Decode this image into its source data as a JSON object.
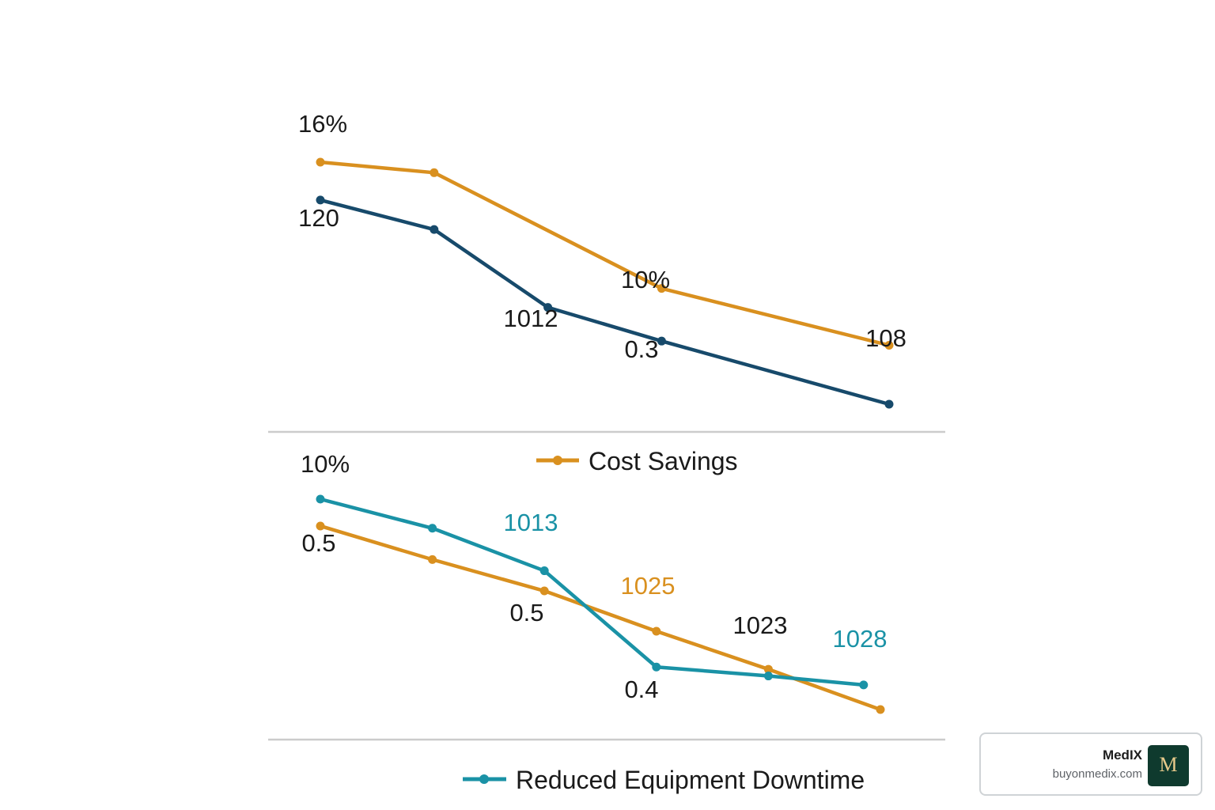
{
  "colors": {
    "orange": "#d9901f",
    "navy": "#174a6b",
    "teal": "#1a92a6",
    "axis": "#cccccc",
    "label_dark": "#1a1a1a"
  },
  "chart_data": [
    {
      "type": "line",
      "legend": {
        "label": "Cost Savings",
        "color": "#d9901f",
        "marker": "circle",
        "placement": "bottom-center"
      },
      "x": [
        1,
        2,
        3,
        4,
        5,
        6
      ],
      "series": [
        {
          "color": "#d9901f",
          "y": [
            16,
            15.5,
            null,
            10,
            null,
            7.3
          ],
          "x": [
            1,
            2,
            null,
            4,
            null,
            6
          ]
        },
        {
          "color": "#174a6b",
          "y": [
            14.2,
            12.8,
            9.1,
            7.5,
            null,
            4.5
          ],
          "x": [
            1,
            2,
            3,
            4,
            null,
            6
          ]
        }
      ],
      "annotations": [
        {
          "text": "16%",
          "color": "#1a1a1a"
        },
        {
          "text": "120",
          "color": "#1a1a1a"
        },
        {
          "text": "1012",
          "color": "#1a1a1a"
        },
        {
          "text": "10%",
          "color": "#1a1a1a"
        },
        {
          "text": "0.3",
          "color": "#1a1a1a"
        },
        {
          "text": "108",
          "color": "#1a1a1a"
        }
      ]
    },
    {
      "type": "line",
      "legend": {
        "label": "Reduced Equipment Downtime",
        "color": "#1a92a6",
        "marker": "circle",
        "placement": "bottom-center"
      },
      "x": [
        1,
        2,
        3,
        4,
        5,
        6
      ],
      "series": [
        {
          "color": "#d9901f",
          "x": [
            1,
            2,
            3,
            4,
            5,
            6
          ],
          "y": [
            10.6,
            9.1,
            7.7,
            5.9,
            4.2,
            2.4
          ]
        },
        {
          "color": "#1a92a6",
          "x": [
            1,
            2,
            3,
            4,
            5,
            5.85
          ],
          "y": [
            11.8,
            10.5,
            8.6,
            4.3,
            3.9,
            3.5
          ]
        }
      ],
      "annotations": [
        {
          "text": "10%",
          "color": "#1a1a1a"
        },
        {
          "text": "0.5",
          "color": "#1a1a1a"
        },
        {
          "text": "1013",
          "color": "#1a92a6"
        },
        {
          "text": "0.5",
          "color": "#1a1a1a"
        },
        {
          "text": "1025",
          "color": "#d9901f"
        },
        {
          "text": "0.4",
          "color": "#1a1a1a"
        },
        {
          "text": "1023",
          "color": "#1a1a1a"
        },
        {
          "text": "1028",
          "color": "#1a92a6"
        }
      ]
    }
  ],
  "watermark": {
    "name": "MedIX",
    "url": "buyonmedix.com",
    "logo_letter": "M"
  }
}
